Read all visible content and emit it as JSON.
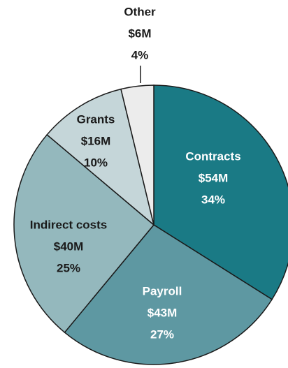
{
  "chart_data": {
    "type": "pie",
    "categories": [
      "Contracts",
      "Payroll",
      "Indirect costs",
      "Grants",
      "Other"
    ],
    "values": [
      54,
      43,
      40,
      16,
      6
    ],
    "value_labels": [
      "$54M",
      "$43M",
      "$40M",
      "$16M",
      "$6M"
    ],
    "percentages": [
      34,
      27,
      25,
      10,
      4
    ],
    "percentage_labels": [
      "34%",
      "27%",
      "25%",
      "10%",
      "4%"
    ],
    "colors": [
      "#1a7a85",
      "#5e98a2",
      "#94b8bd",
      "#c5d6d9",
      "#ececec"
    ]
  }
}
